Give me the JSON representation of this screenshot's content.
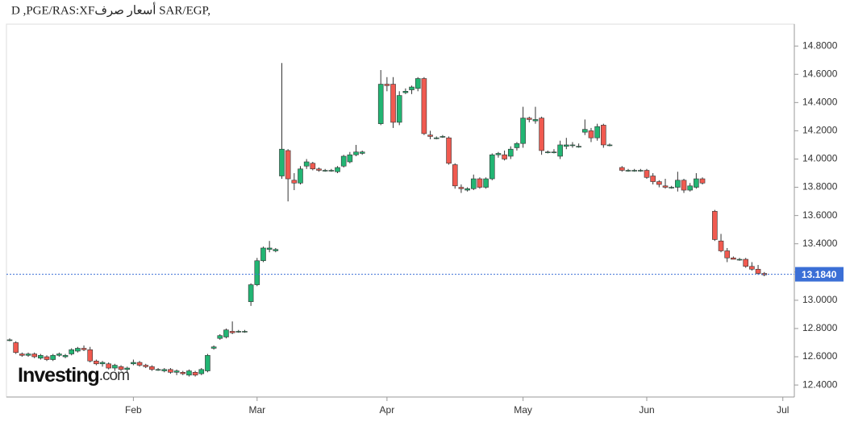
{
  "chart_data": {
    "type": "candlestick",
    "title": "D ,PGE/RAS:XFأسعار صرف SAR/EGP,",
    "logo": "Investing",
    "logo_suffix": ".com",
    "up_color": "#22b573",
    "down_color": "#f05a50",
    "ylim": [
      12.315,
      14.955
    ],
    "yticks": [
      {
        "value": 12.4,
        "label": "12.4000"
      },
      {
        "value": 12.6,
        "label": "12.6000"
      },
      {
        "value": 12.8,
        "label": "12.8000"
      },
      {
        "value": 13.0,
        "label": "13.0000"
      },
      {
        "value": 13.2,
        "label": "13.2000"
      },
      {
        "value": 13.4,
        "label": "13.4000"
      },
      {
        "value": 13.6,
        "label": "13.6000"
      },
      {
        "value": 13.8,
        "label": "13.8000"
      },
      {
        "value": 14.0,
        "label": "14.0000"
      },
      {
        "value": 14.2,
        "label": "14.2000"
      },
      {
        "value": 14.4,
        "label": "14.4000"
      },
      {
        "value": 14.6,
        "label": "14.6000"
      },
      {
        "value": 14.8,
        "label": "14.8000"
      }
    ],
    "last_price": {
      "value": 13.184,
      "label": "13.1840"
    },
    "categories": [
      null,
      null,
      null,
      null,
      null,
      null,
      null,
      null,
      null,
      null,
      null,
      null,
      null,
      null,
      null,
      null,
      null,
      null,
      null,
      null,
      "Feb",
      null,
      null,
      null,
      null,
      null,
      null,
      null,
      null,
      null,
      null,
      null,
      null,
      null,
      null,
      null,
      null,
      null,
      null,
      null,
      "Mar",
      null,
      null,
      null,
      null,
      null,
      null,
      null,
      null,
      null,
      null,
      null,
      null,
      null,
      null,
      null,
      null,
      null,
      null,
      null,
      null,
      "Apr",
      null,
      null,
      null,
      null,
      null,
      null,
      null,
      null,
      null,
      null,
      null,
      null,
      null,
      null,
      null,
      null,
      null,
      null,
      null,
      null,
      null,
      "May",
      null,
      null,
      null,
      null,
      null,
      null,
      null,
      null,
      null,
      null,
      null,
      null,
      null,
      null,
      null,
      null,
      null,
      null,
      null,
      "Jun",
      null,
      null,
      null,
      null,
      null,
      null,
      null,
      null,
      null,
      null,
      null,
      null,
      null,
      null,
      null,
      null,
      null,
      null,
      null,
      null,
      null,
      "Jul"
    ],
    "open": [
      12.72,
      12.7,
      12.62,
      12.61,
      12.62,
      12.59,
      12.6,
      12.58,
      12.61,
      12.6,
      12.62,
      12.64,
      12.66,
      12.65,
      12.57,
      12.55,
      12.55,
      12.52,
      12.53,
      12.51,
      12.55,
      12.56,
      12.54,
      12.53,
      12.51,
      12.5,
      12.51,
      12.49,
      12.49,
      12.47,
      12.49,
      12.48,
      12.5,
      12.66,
      12.73,
      12.74,
      12.78,
      12.78,
      12.78,
      12.99,
      13.11,
      13.28,
      13.36,
      13.35,
      13.88,
      14.06,
      13.85,
      13.83,
      13.95,
      13.97,
      13.93,
      13.92,
      13.92,
      13.91,
      13.95,
      13.98,
      14.03,
      14.04,
      null,
      null,
      14.25,
      14.53,
      14.53,
      14.26,
      14.47,
      14.49,
      14.5,
      14.57,
      14.17,
      14.15,
      14.16,
      14.15,
      13.96,
      13.8,
      13.78,
      13.79,
      13.86,
      13.8,
      13.86,
      14.03,
      14.03,
      14.02,
      14.08,
      14.11,
      14.29,
      14.27,
      14.29,
      14.05,
      14.05,
      14.02,
      14.09,
      14.1,
      14.09,
      14.19,
      14.2,
      14.15,
      14.24,
      14.1,
      null,
      13.94,
      13.92,
      13.92,
      13.92,
      13.92,
      13.88,
      13.84,
      13.81,
      13.8,
      13.8,
      13.85,
      13.78,
      13.8,
      13.86,
      null,
      13.63,
      13.42,
      13.35,
      13.3,
      13.29,
      13.29,
      13.24,
      13.22,
      13.19,
      null,
      null,
      null
    ],
    "high": [
      12.73,
      12.71,
      12.63,
      12.63,
      12.63,
      12.62,
      12.61,
      12.62,
      12.63,
      12.62,
      12.66,
      12.67,
      12.68,
      12.67,
      12.58,
      12.57,
      12.56,
      12.55,
      12.54,
      12.53,
      12.58,
      12.57,
      12.55,
      12.54,
      12.52,
      12.52,
      12.52,
      12.51,
      12.5,
      12.51,
      12.5,
      12.52,
      12.62,
      12.68,
      12.76,
      12.8,
      12.85,
      12.79,
      12.79,
      13.12,
      13.3,
      13.38,
      13.42,
      13.37,
      14.68,
      14.07,
      13.9,
      13.95,
      14.0,
      13.98,
      13.94,
      13.93,
      13.93,
      13.95,
      14.03,
      14.05,
      14.1,
      14.06,
      null,
      null,
      14.63,
      14.58,
      14.58,
      14.48,
      14.5,
      14.52,
      14.58,
      14.58,
      14.2,
      14.16,
      14.17,
      14.16,
      13.97,
      13.82,
      13.8,
      13.89,
      13.87,
      13.87,
      14.04,
      14.05,
      14.06,
      14.09,
      14.12,
      14.37,
      14.3,
      14.37,
      14.3,
      14.06,
      14.07,
      14.13,
      14.15,
      14.12,
      14.11,
      14.28,
      14.22,
      14.25,
      14.25,
      14.11,
      null,
      13.95,
      13.93,
      13.93,
      13.93,
      13.93,
      13.9,
      13.85,
      13.86,
      13.81,
      13.91,
      13.86,
      13.83,
      13.9,
      13.87,
      null,
      13.64,
      13.47,
      13.37,
      13.31,
      13.3,
      13.3,
      13.27,
      13.25,
      13.2,
      null,
      null,
      null
    ],
    "low": [
      12.71,
      12.62,
      12.6,
      12.6,
      12.59,
      12.58,
      12.57,
      12.57,
      12.6,
      12.59,
      12.61,
      12.63,
      12.64,
      12.56,
      12.54,
      12.53,
      12.51,
      12.5,
      12.5,
      12.49,
      12.54,
      12.53,
      12.52,
      12.5,
      12.5,
      12.49,
      12.48,
      12.47,
      12.47,
      12.46,
      12.46,
      12.47,
      12.49,
      12.65,
      12.72,
      12.73,
      12.76,
      12.77,
      12.77,
      12.96,
      13.1,
      13.27,
      13.34,
      13.34,
      13.86,
      13.7,
      13.78,
      13.82,
      13.93,
      13.92,
      13.91,
      13.91,
      13.91,
      13.9,
      13.94,
      13.97,
      14.02,
      14.03,
      null,
      null,
      14.24,
      14.48,
      14.22,
      14.24,
      14.46,
      14.46,
      14.48,
      14.17,
      14.14,
      14.14,
      14.15,
      13.96,
      13.79,
      13.76,
      13.77,
      13.78,
      13.79,
      13.79,
      13.85,
      14.01,
      13.99,
      14.0,
      14.06,
      14.08,
      14.26,
      14.25,
      14.03,
      14.04,
      14.04,
      14.0,
      14.07,
      14.08,
      14.08,
      14.17,
      14.12,
      14.13,
      14.08,
      14.09,
      null,
      13.91,
      13.91,
      13.91,
      13.91,
      13.86,
      13.82,
      13.8,
      13.79,
      13.79,
      13.77,
      13.76,
      13.77,
      13.79,
      13.82,
      null,
      13.42,
      13.34,
      13.27,
      13.29,
      13.28,
      13.23,
      13.21,
      13.18,
      13.17,
      null,
      null,
      null
    ],
    "close": [
      12.72,
      12.63,
      12.61,
      12.62,
      12.6,
      12.61,
      12.58,
      12.61,
      12.62,
      12.61,
      12.65,
      12.66,
      12.65,
      12.57,
      12.55,
      12.56,
      12.52,
      12.54,
      12.51,
      12.52,
      12.56,
      12.54,
      12.53,
      12.51,
      12.51,
      12.51,
      12.49,
      12.5,
      12.48,
      12.5,
      12.47,
      12.51,
      12.61,
      12.67,
      12.75,
      12.79,
      12.77,
      12.78,
      12.78,
      13.11,
      13.28,
      13.37,
      13.37,
      13.36,
      14.07,
      13.86,
      13.83,
      13.93,
      13.98,
      13.93,
      13.92,
      13.92,
      13.92,
      13.94,
      14.02,
      14.03,
      14.05,
      14.05,
      null,
      null,
      14.53,
      14.52,
      14.26,
      14.45,
      14.48,
      14.51,
      14.57,
      14.18,
      14.16,
      14.15,
      14.16,
      13.97,
      13.81,
      13.79,
      13.79,
      13.86,
      13.8,
      13.86,
      14.03,
      14.04,
      14.0,
      14.07,
      14.11,
      14.29,
      14.28,
      14.28,
      14.06,
      14.05,
      14.05,
      14.1,
      14.1,
      14.1,
      14.09,
      14.21,
      14.15,
      14.23,
      14.1,
      14.1,
      null,
      13.92,
      13.92,
      13.92,
      13.92,
      13.87,
      13.84,
      13.82,
      13.8,
      13.8,
      13.85,
      13.78,
      13.81,
      13.86,
      13.83,
      null,
      13.43,
      13.35,
      13.3,
      13.29,
      13.29,
      13.24,
      13.22,
      13.19,
      13.18,
      null,
      null,
      null
    ]
  }
}
